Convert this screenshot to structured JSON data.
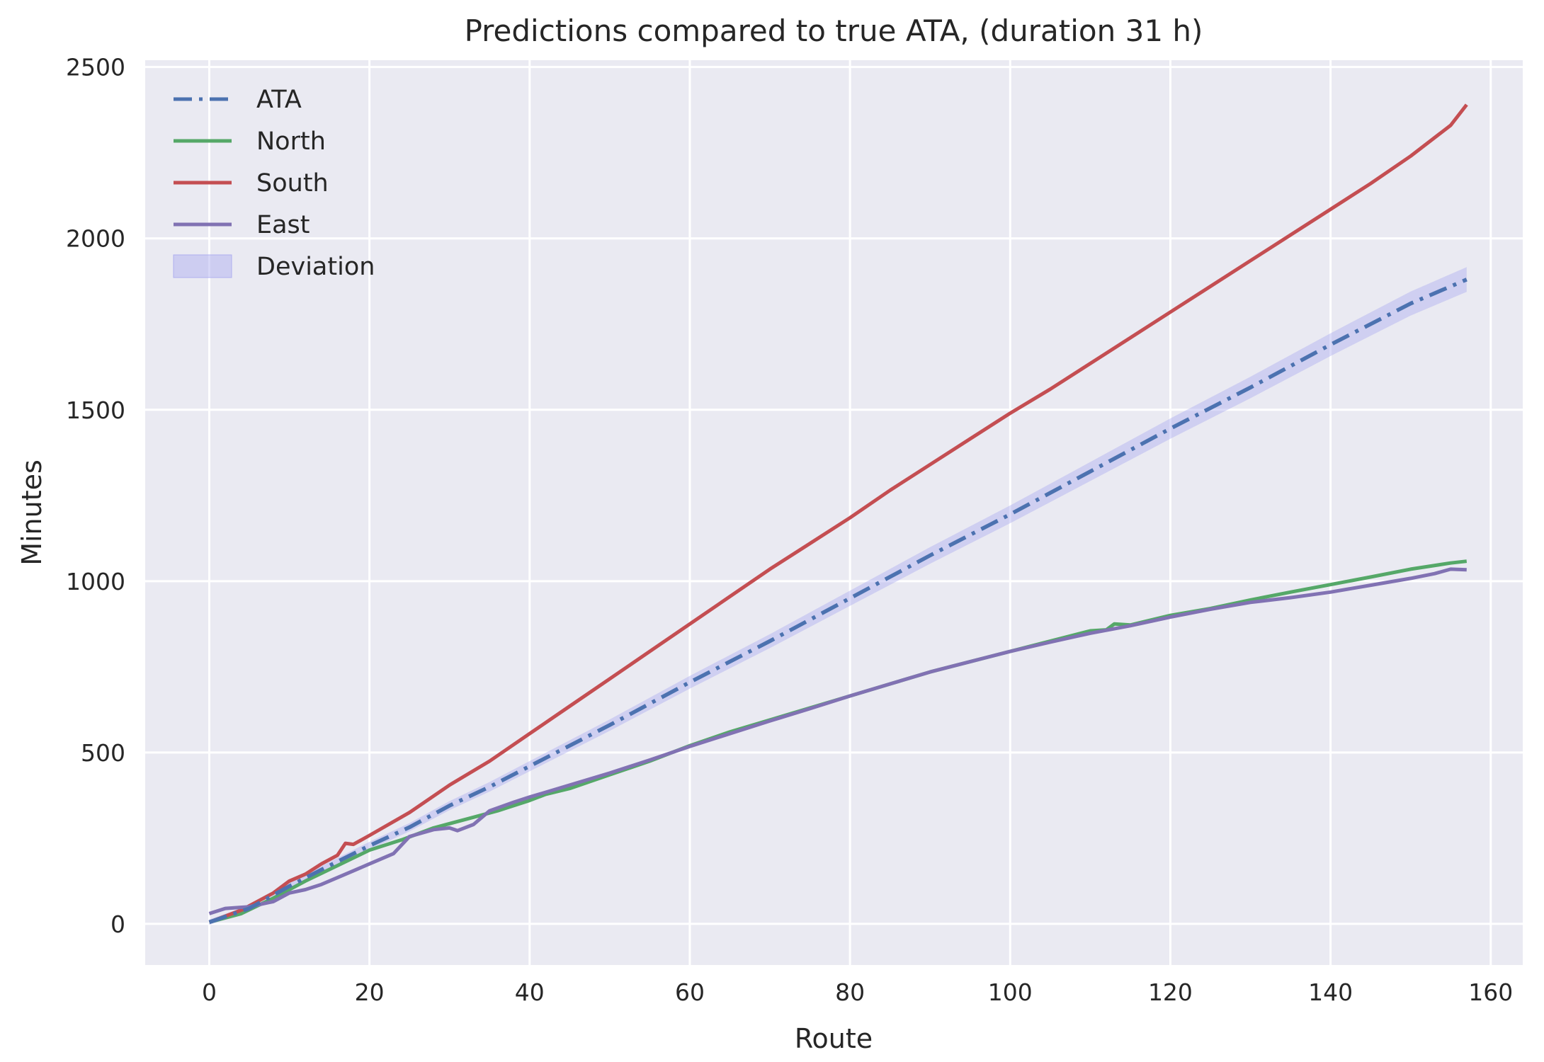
{
  "chart_data": {
    "type": "line",
    "title": "Predictions compared to true ATA, (duration 31 h)",
    "xlabel": "Route",
    "ylabel": "Minutes",
    "xlim": [
      -8,
      164
    ],
    "ylim": [
      -120,
      2520
    ],
    "xticks": [
      0,
      20,
      40,
      60,
      80,
      100,
      120,
      140,
      160
    ],
    "yticks": [
      0,
      500,
      1000,
      1500,
      2000,
      2500
    ],
    "grid": true,
    "legend_position": "top-left",
    "background": "#eaeaf2",
    "series": [
      {
        "name": "ATA",
        "color": "#4c72b0",
        "style": "dashdot",
        "points": [
          [
            0,
            5
          ],
          [
            5,
            45
          ],
          [
            10,
            110
          ],
          [
            15,
            170
          ],
          [
            20,
            228
          ],
          [
            25,
            282
          ],
          [
            30,
            345
          ],
          [
            35,
            400
          ],
          [
            40,
            460
          ],
          [
            50,
            580
          ],
          [
            60,
            705
          ],
          [
            70,
            825
          ],
          [
            80,
            950
          ],
          [
            90,
            1075
          ],
          [
            100,
            1195
          ],
          [
            110,
            1320
          ],
          [
            120,
            1445
          ],
          [
            130,
            1565
          ],
          [
            140,
            1690
          ],
          [
            150,
            1810
          ],
          [
            157,
            1880
          ]
        ]
      },
      {
        "name": "North",
        "color": "#55a868",
        "style": "solid",
        "points": [
          [
            0,
            5
          ],
          [
            4,
            30
          ],
          [
            8,
            75
          ],
          [
            12,
            125
          ],
          [
            16,
            170
          ],
          [
            20,
            215
          ],
          [
            24,
            245
          ],
          [
            28,
            280
          ],
          [
            32,
            305
          ],
          [
            36,
            330
          ],
          [
            40,
            360
          ],
          [
            42,
            378
          ],
          [
            45,
            395
          ],
          [
            50,
            435
          ],
          [
            55,
            475
          ],
          [
            60,
            520
          ],
          [
            65,
            560
          ],
          [
            70,
            595
          ],
          [
            75,
            630
          ],
          [
            80,
            665
          ],
          [
            85,
            700
          ],
          [
            90,
            735
          ],
          [
            95,
            765
          ],
          [
            100,
            795
          ],
          [
            105,
            825
          ],
          [
            110,
            855
          ],
          [
            112,
            858
          ],
          [
            113,
            875
          ],
          [
            115,
            872
          ],
          [
            120,
            900
          ],
          [
            125,
            920
          ],
          [
            130,
            945
          ],
          [
            135,
            968
          ],
          [
            140,
            990
          ],
          [
            145,
            1012
          ],
          [
            150,
            1035
          ],
          [
            155,
            1053
          ],
          [
            157,
            1058
          ]
        ]
      },
      {
        "name": "South",
        "color": "#c44e52",
        "style": "solid",
        "points": [
          [
            0,
            5
          ],
          [
            4,
            40
          ],
          [
            8,
            90
          ],
          [
            10,
            125
          ],
          [
            12,
            145
          ],
          [
            14,
            175
          ],
          [
            16,
            200
          ],
          [
            17,
            235
          ],
          [
            18,
            232
          ],
          [
            20,
            258
          ],
          [
            25,
            325
          ],
          [
            30,
            405
          ],
          [
            35,
            475
          ],
          [
            40,
            555
          ],
          [
            45,
            635
          ],
          [
            50,
            715
          ],
          [
            55,
            795
          ],
          [
            60,
            875
          ],
          [
            65,
            955
          ],
          [
            70,
            1035
          ],
          [
            75,
            1110
          ],
          [
            80,
            1185
          ],
          [
            85,
            1265
          ],
          [
            90,
            1340
          ],
          [
            95,
            1415
          ],
          [
            100,
            1490
          ],
          [
            105,
            1560
          ],
          [
            110,
            1635
          ],
          [
            115,
            1710
          ],
          [
            120,
            1785
          ],
          [
            125,
            1860
          ],
          [
            130,
            1935
          ],
          [
            135,
            2010
          ],
          [
            140,
            2085
          ],
          [
            145,
            2160
          ],
          [
            150,
            2240
          ],
          [
            155,
            2330
          ],
          [
            157,
            2390
          ]
        ]
      },
      {
        "name": "East",
        "color": "#8172b3",
        "style": "solid",
        "points": [
          [
            0,
            30
          ],
          [
            2,
            45
          ],
          [
            5,
            50
          ],
          [
            8,
            65
          ],
          [
            10,
            90
          ],
          [
            12,
            100
          ],
          [
            14,
            115
          ],
          [
            16,
            135
          ],
          [
            18,
            155
          ],
          [
            20,
            175
          ],
          [
            23,
            205
          ],
          [
            25,
            255
          ],
          [
            28,
            275
          ],
          [
            30,
            280
          ],
          [
            31,
            272
          ],
          [
            33,
            290
          ],
          [
            35,
            330
          ],
          [
            38,
            355
          ],
          [
            40,
            370
          ],
          [
            45,
            405
          ],
          [
            50,
            440
          ],
          [
            55,
            478
          ],
          [
            60,
            518
          ],
          [
            65,
            555
          ],
          [
            70,
            592
          ],
          [
            75,
            628
          ],
          [
            80,
            665
          ],
          [
            85,
            700
          ],
          [
            90,
            735
          ],
          [
            95,
            765
          ],
          [
            100,
            795
          ],
          [
            105,
            822
          ],
          [
            110,
            848
          ],
          [
            115,
            870
          ],
          [
            120,
            895
          ],
          [
            125,
            918
          ],
          [
            130,
            938
          ],
          [
            135,
            952
          ],
          [
            140,
            968
          ],
          [
            145,
            988
          ],
          [
            150,
            1008
          ],
          [
            153,
            1022
          ],
          [
            155,
            1035
          ],
          [
            157,
            1033
          ]
        ]
      }
    ],
    "band": {
      "name": "Deviation",
      "color": "#b0b0f0",
      "around_series": "ATA",
      "relative_half_width": 0.015
    }
  }
}
